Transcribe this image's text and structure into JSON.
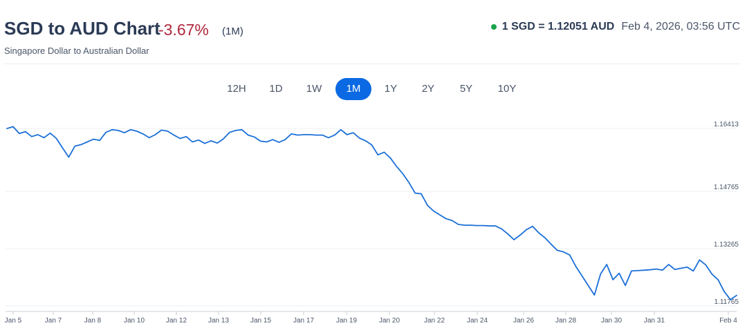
{
  "header": {
    "title": "SGD to AUD Chart",
    "change": "-3.67%",
    "period": "(1M)",
    "subtitle": "Singapore Dollar to Australian Dollar",
    "rate": "1 SGD = 1.12051 AUD",
    "timestamp": "Feb 4, 2026, 03:56 UTC",
    "live_color": "#1aa34a",
    "change_color": "#b0283c"
  },
  "tabs": [
    {
      "label": "12H",
      "active": false
    },
    {
      "label": "1D",
      "active": false
    },
    {
      "label": "1W",
      "active": false
    },
    {
      "label": "1M",
      "active": true
    },
    {
      "label": "1Y",
      "active": false
    },
    {
      "label": "2Y",
      "active": false
    },
    {
      "label": "5Y",
      "active": false
    },
    {
      "label": "10Y",
      "active": false
    }
  ],
  "chart_data": {
    "type": "line",
    "title": "",
    "xlabel": "",
    "ylabel": "",
    "line_color": "#1a6fd8",
    "grid": true,
    "y_ticks": [
      "1.16413",
      "1.14765",
      "1.13265",
      "1.11765"
    ],
    "x_ticks": [
      "Jan 5",
      "Jan 7",
      "Jan 8",
      "Jan 10",
      "Jan 12",
      "Jan 13",
      "Jan 15",
      "Jan 17",
      "Jan 19",
      "Jan 20",
      "Jan 22",
      "Jan 24",
      "Jan 26",
      "Jan 28",
      "Jan 30",
      "Jan 31",
      "Feb 4"
    ],
    "series": [
      {
        "values": [
          1.1641,
          1.1646,
          1.1628,
          1.1633,
          1.162,
          1.1625,
          1.1617,
          1.1629,
          1.1615,
          1.159,
          1.1566,
          1.1595,
          1.1599,
          1.1606,
          1.1613,
          1.161,
          1.1631,
          1.1638,
          1.1636,
          1.163,
          1.1638,
          1.1634,
          1.1627,
          1.1617,
          1.1625,
          1.1637,
          1.1634,
          1.1624,
          1.1615,
          1.162,
          1.1606,
          1.1611,
          1.1602,
          1.1609,
          1.1603,
          1.1614,
          1.1631,
          1.1636,
          1.1638,
          1.1624,
          1.1619,
          1.1608,
          1.1606,
          1.1612,
          1.1605,
          1.1612,
          1.1627,
          1.1624,
          1.1625,
          1.1625,
          1.1624,
          1.1624,
          1.1617,
          1.1624,
          1.1638,
          1.1625,
          1.163,
          1.1616,
          1.1609,
          1.1598,
          1.1572,
          1.1579,
          1.1564,
          1.1542,
          1.1523,
          1.15,
          1.1472,
          1.147,
          1.144,
          1.1425,
          1.1415,
          1.1405,
          1.14,
          1.139,
          1.1388,
          1.1388,
          1.1387,
          1.1387,
          1.1386,
          1.1386,
          1.1378,
          1.1365,
          1.135,
          1.1362,
          1.1376,
          1.1385,
          1.1368,
          1.1355,
          1.1338,
          1.1322,
          1.1318,
          1.131,
          1.128,
          1.1255,
          1.123,
          1.1205,
          1.126,
          1.1285,
          1.1245,
          1.1262,
          1.123,
          1.1268,
          1.1269,
          1.127,
          1.1271,
          1.1273,
          1.127,
          1.1285,
          1.1272,
          1.1275,
          1.1278,
          1.1268,
          1.1297,
          1.1284,
          1.126,
          1.1245,
          1.1214,
          1.1193,
          1.1204
        ]
      }
    ]
  }
}
